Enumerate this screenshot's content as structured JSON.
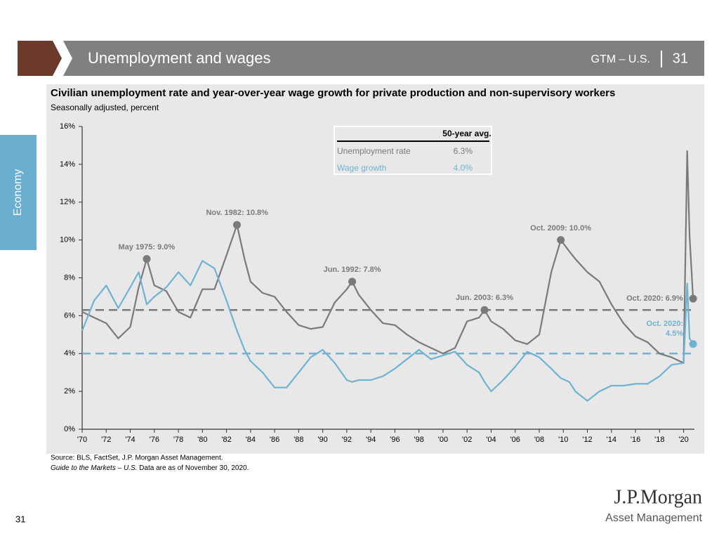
{
  "header": {
    "title": "Unemployment and wages",
    "tag": "GTM – U.S.",
    "page": "31"
  },
  "side_tab": "Economy",
  "chart_data": {
    "type": "line",
    "title": "Civilian unemployment rate and year-over-year wage growth for private production and non-supervisory workers",
    "subtitle": "Seasonally adjusted, percent",
    "x": [
      1970,
      1971,
      1972,
      1973,
      1974,
      1974.7,
      1975.37,
      1976,
      1977,
      1978,
      1979,
      1980,
      1981,
      1982,
      1982.87,
      1983.5,
      1984,
      1985,
      1986,
      1987,
      1988,
      1989,
      1990,
      1991,
      1992,
      1992.45,
      1993,
      1994,
      1995,
      1996,
      1997,
      1998,
      1999,
      2000,
      2001,
      2002,
      2003,
      2003.45,
      2004,
      2005,
      2006,
      2007,
      2008,
      2009,
      2009.79,
      2010.5,
      2011,
      2012,
      2013,
      2014,
      2015,
      2016,
      2017,
      2018,
      2019,
      2020.0,
      2020.3,
      2020.5,
      2020.79
    ],
    "series": [
      {
        "name": "Unemployment rate",
        "color": "#7a7a7a",
        "values": [
          6.2,
          5.9,
          5.6,
          4.8,
          5.4,
          7.5,
          9.0,
          7.6,
          7.3,
          6.2,
          5.9,
          7.4,
          7.4,
          9.2,
          10.8,
          9.0,
          7.8,
          7.2,
          7.0,
          6.2,
          5.5,
          5.3,
          5.4,
          6.7,
          7.4,
          7.8,
          7.1,
          6.3,
          5.6,
          5.5,
          5.0,
          4.6,
          4.3,
          4.0,
          4.3,
          5.7,
          5.9,
          6.3,
          5.7,
          5.3,
          4.7,
          4.5,
          5.0,
          8.3,
          10.0,
          9.4,
          9.0,
          8.3,
          7.8,
          6.6,
          5.6,
          4.9,
          4.6,
          4.0,
          3.8,
          3.5,
          14.7,
          10.2,
          6.9
        ]
      },
      {
        "name": "Wage growth",
        "color": "#6fb3d2",
        "values": [
          5.2,
          6.8,
          7.6,
          6.4,
          7.5,
          8.3,
          6.6,
          7.0,
          7.5,
          8.3,
          7.6,
          8.9,
          8.5,
          6.8,
          5.2,
          4.2,
          3.6,
          3.0,
          2.2,
          2.2,
          3.0,
          3.8,
          4.2,
          3.5,
          2.6,
          2.5,
          2.6,
          2.6,
          2.8,
          3.2,
          3.7,
          4.2,
          3.7,
          3.9,
          4.1,
          3.4,
          3.0,
          2.5,
          2.0,
          2.6,
          3.3,
          4.1,
          3.8,
          3.2,
          2.7,
          2.5,
          2.0,
          1.5,
          2.0,
          2.3,
          2.3,
          2.4,
          2.4,
          2.8,
          3.4,
          3.5,
          7.7,
          4.8,
          4.5
        ]
      }
    ],
    "averages": {
      "title": "50-year avg.",
      "values": [
        6.3,
        4.0
      ],
      "value_labels": [
        "6.3%",
        "4.0%"
      ]
    },
    "annotations": [
      {
        "label": "May 1975: 9.0%",
        "x": 1975.37,
        "y": 9.0,
        "position": "above",
        "color": "#7a7a7a"
      },
      {
        "label": "Nov. 1982: 10.8%",
        "x": 1982.87,
        "y": 10.8,
        "position": "above",
        "color": "#7a7a7a"
      },
      {
        "label": "Jun. 1992: 7.8%",
        "x": 1992.45,
        "y": 7.8,
        "position": "above",
        "color": "#7a7a7a"
      },
      {
        "label": "Jun. 2003: 6.3%",
        "x": 2003.45,
        "y": 6.3,
        "position": "above",
        "color": "#7a7a7a"
      },
      {
        "label": "Oct. 2009: 10.0%",
        "x": 2009.79,
        "y": 10.0,
        "position": "above",
        "color": "#7a7a7a"
      },
      {
        "label": "Oct. 2020: 6.9%",
        "x": 2020.79,
        "y": 6.9,
        "position": "left",
        "color": "#7a7a7a"
      },
      {
        "label": "Oct. 2020: 4.5%",
        "x": 2020.79,
        "y": 4.5,
        "position": "left-above",
        "color": "#6fb3d2"
      }
    ],
    "xlim": [
      1970,
      2020.9
    ],
    "xticks": [
      {
        "value": 1970,
        "label": "'70"
      },
      {
        "value": 1972,
        "label": "'72"
      },
      {
        "value": 1974,
        "label": "'74"
      },
      {
        "value": 1976,
        "label": "'76"
      },
      {
        "value": 1978,
        "label": "'78"
      },
      {
        "value": 1980,
        "label": "'80"
      },
      {
        "value": 1982,
        "label": "'82"
      },
      {
        "value": 1984,
        "label": "'84"
      },
      {
        "value": 1986,
        "label": "'86"
      },
      {
        "value": 1988,
        "label": "'88"
      },
      {
        "value": 1990,
        "label": "'90"
      },
      {
        "value": 1992,
        "label": "'92"
      },
      {
        "value": 1994,
        "label": "'94"
      },
      {
        "value": 1996,
        "label": "'96"
      },
      {
        "value": 1998,
        "label": "'98"
      },
      {
        "value": 2000,
        "label": "'00"
      },
      {
        "value": 2002,
        "label": "'02"
      },
      {
        "value": 2004,
        "label": "'04"
      },
      {
        "value": 2006,
        "label": "'06"
      },
      {
        "value": 2008,
        "label": "'08"
      },
      {
        "value": 2010,
        "label": "'10"
      },
      {
        "value": 2012,
        "label": "'12"
      },
      {
        "value": 2014,
        "label": "'14"
      },
      {
        "value": 2016,
        "label": "'16"
      },
      {
        "value": 2018,
        "label": "'18"
      },
      {
        "value": 2020,
        "label": "'20"
      }
    ],
    "ylim": [
      0,
      16
    ],
    "yticks": [
      {
        "value": 0,
        "label": "0%"
      },
      {
        "value": 2,
        "label": "2%"
      },
      {
        "value": 4,
        "label": "4%"
      },
      {
        "value": 6,
        "label": "6%"
      },
      {
        "value": 8,
        "label": "8%"
      },
      {
        "value": 10,
        "label": "10%"
      },
      {
        "value": 12,
        "label": "12%"
      },
      {
        "value": 14,
        "label": "14%"
      },
      {
        "value": 16,
        "label": "16%"
      }
    ],
    "grid": false
  },
  "footer": {
    "source": "Source: BLS, FactSet, J.P. Morgan Asset Management.",
    "note_italic": "Guide to the Markets – U.S.",
    "note": "Data are as of November 30, 2020.",
    "page_number": "31",
    "logo": "J.P.Morgan",
    "logo_sub": "Asset Management"
  }
}
